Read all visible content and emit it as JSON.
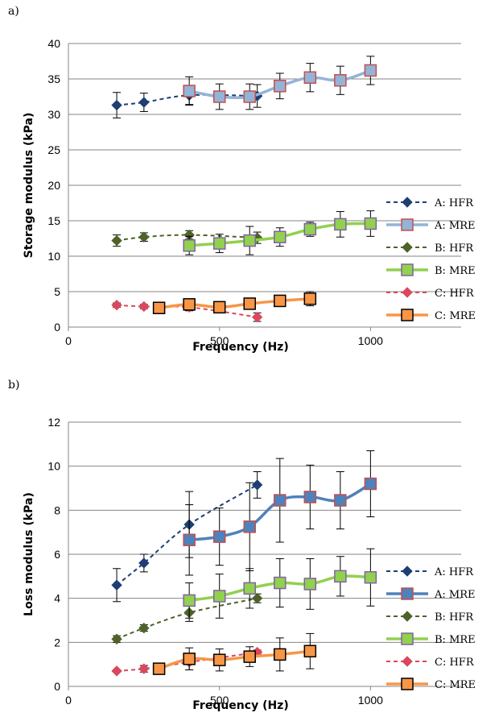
{
  "chart_data": [
    {
      "panel_label": "a)",
      "type": "line",
      "xlabel": "Frequency (Hz)",
      "ylabel": "Storage modulus (kPa)",
      "xlim": [
        0,
        1300
      ],
      "ylim": [
        0,
        40
      ],
      "xticks": [
        0,
        500,
        1000
      ],
      "yticks": [
        0,
        5,
        10,
        15,
        20,
        25,
        30,
        35,
        40
      ],
      "grid": "horizontal",
      "legend": "right",
      "series": [
        {
          "name": "A: HFR",
          "color": "#1f3f73",
          "marker": "diamond",
          "line": "dashed",
          "x": [
            160,
            250,
            400,
            625
          ],
          "y": [
            31.3,
            31.7,
            32.7,
            32.6
          ],
          "err": [
            1.8,
            1.3,
            1.3,
            1.6
          ]
        },
        {
          "name": "A: MRE",
          "color": "#95b3d7",
          "marker": "square",
          "marker_edge": "#c0504d",
          "line": "solid",
          "x": [
            400,
            500,
            600,
            700,
            800,
            900,
            1000
          ],
          "y": [
            33.3,
            32.5,
            32.5,
            34.0,
            35.2,
            34.8,
            36.2
          ],
          "err": [
            2.0,
            1.8,
            1.8,
            1.8,
            2.0,
            2.0,
            2.0
          ]
        },
        {
          "name": "B: HFR",
          "color": "#4f6228",
          "marker": "diamond",
          "line": "dashed",
          "x": [
            160,
            250,
            400,
            625
          ],
          "y": [
            12.2,
            12.7,
            13.0,
            12.6
          ],
          "err": [
            0.8,
            0.6,
            0.6,
            0.8
          ]
        },
        {
          "name": "B: MRE",
          "color": "#92d050",
          "marker": "square",
          "marker_edge": "#8064a2",
          "line": "solid",
          "x": [
            400,
            500,
            600,
            700,
            800,
            900,
            1000
          ],
          "y": [
            11.5,
            11.8,
            12.2,
            12.7,
            13.8,
            14.5,
            14.6
          ],
          "err": [
            1.3,
            1.3,
            2.0,
            1.3,
            1.0,
            1.8,
            1.8
          ]
        },
        {
          "name": "C: HFR",
          "color": "#d9485d",
          "marker": "diamond",
          "line": "dashed",
          "x": [
            160,
            250,
            400,
            625
          ],
          "y": [
            3.1,
            2.9,
            2.8,
            1.4
          ],
          "err": [
            0.3,
            0.3,
            0.5,
            0.6
          ]
        },
        {
          "name": "C: MRE",
          "color": "#f79646",
          "marker": "square",
          "marker_edge": "#000000",
          "line": "solid",
          "x": [
            300,
            400,
            500,
            600,
            700,
            800
          ],
          "y": [
            2.7,
            3.2,
            2.8,
            3.3,
            3.7,
            4.0
          ],
          "err": [
            0.5,
            0.6,
            0.5,
            0.7,
            0.6,
            1.0
          ]
        }
      ]
    },
    {
      "panel_label": "b)",
      "type": "line",
      "xlabel": "Frequency (Hz)",
      "ylabel": "Loss modulus (kPa)",
      "xlim": [
        0,
        1300
      ],
      "ylim": [
        0,
        12
      ],
      "xticks": [
        0,
        500,
        1000
      ],
      "yticks": [
        0,
        2,
        4,
        6,
        8,
        10,
        12
      ],
      "grid": "horizontal",
      "legend": "right",
      "series": [
        {
          "name": "A: HFR",
          "color": "#1f3f73",
          "marker": "diamond",
          "line": "dashed",
          "x": [
            160,
            250,
            400,
            625
          ],
          "y": [
            4.6,
            5.6,
            7.35,
            9.15
          ],
          "err": [
            0.75,
            0.4,
            1.5,
            0.6
          ]
        },
        {
          "name": "A: MRE",
          "color": "#4f81bd",
          "marker": "square",
          "marker_edge": "#c0504d",
          "line": "solid",
          "x": [
            400,
            500,
            600,
            700,
            800,
            900,
            1000
          ],
          "y": [
            6.65,
            6.8,
            7.25,
            8.45,
            8.6,
            8.45,
            9.2
          ],
          "err": [
            1.6,
            1.3,
            2.0,
            1.9,
            1.45,
            1.3,
            1.5
          ]
        },
        {
          "name": "B: HFR",
          "color": "#4f6228",
          "marker": "diamond",
          "line": "dashed",
          "x": [
            160,
            250,
            400,
            625
          ],
          "y": [
            2.15,
            2.65,
            3.35,
            4.0
          ],
          "err": [
            0.15,
            0.15,
            0.4,
            0.2
          ]
        },
        {
          "name": "B: MRE",
          "color": "#92d050",
          "marker": "square",
          "marker_edge": "#8064a2",
          "line": "solid",
          "x": [
            400,
            500,
            600,
            700,
            800,
            900,
            1000
          ],
          "y": [
            3.9,
            4.1,
            4.45,
            4.7,
            4.65,
            5.0,
            4.95
          ],
          "err": [
            0.8,
            1.0,
            0.9,
            1.1,
            1.15,
            0.9,
            1.3
          ]
        },
        {
          "name": "C: HFR",
          "color": "#d9485d",
          "marker": "diamond",
          "line": "dashed",
          "x": [
            160,
            250,
            400,
            625
          ],
          "y": [
            0.7,
            0.8,
            1.1,
            1.55
          ],
          "err": [
            0.05,
            0.15,
            0.35,
            0.1
          ]
        },
        {
          "name": "C: MRE",
          "color": "#f79646",
          "marker": "square",
          "marker_edge": "#000000",
          "line": "solid",
          "x": [
            300,
            400,
            500,
            600,
            700,
            800
          ],
          "y": [
            0.8,
            1.25,
            1.2,
            1.35,
            1.45,
            1.6
          ],
          "err": [
            0.2,
            0.5,
            0.5,
            0.45,
            0.75,
            0.8
          ]
        }
      ]
    }
  ]
}
